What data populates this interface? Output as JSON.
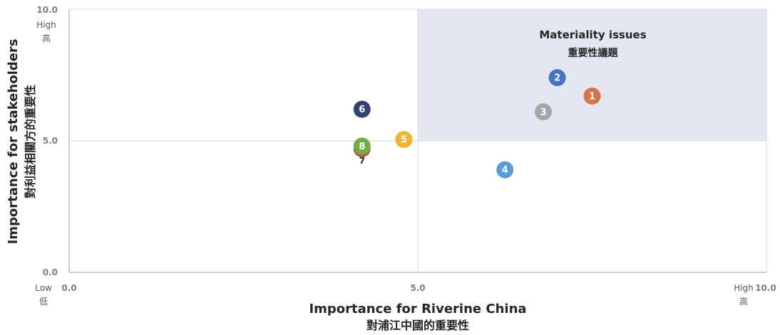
{
  "chart_data": {
    "type": "scatter",
    "title": "",
    "xlabel": "Importance for Riverine China",
    "xlabel_sub": "對浦江中國的重要性",
    "ylabel": "Importance for stakeholders",
    "ylabel_sub": "對利益相關方的重要性",
    "xlim": [
      0,
      10
    ],
    "ylim": [
      0,
      10
    ],
    "x_ticks": [
      "0.0",
      "5.0",
      "10.0"
    ],
    "y_ticks": [
      "0.0",
      "5.0",
      "10.0"
    ],
    "x_low_label": "Low",
    "x_low_sub": "低",
    "x_high_label": "High",
    "x_high_sub": "高",
    "y_high_label": "High",
    "y_high_sub": "高",
    "grid": false,
    "region": {
      "x_range": [
        5,
        10
      ],
      "y_range": [
        5,
        10
      ],
      "title": "Materiality issues",
      "subtitle": "重要性議題",
      "color": "#e4e6f2"
    },
    "points": [
      {
        "label": "1",
        "x": 7.5,
        "y": 6.7,
        "color": "#d9734a"
      },
      {
        "label": "2",
        "x": 7.0,
        "y": 7.4,
        "color": "#4673c4"
      },
      {
        "label": "3",
        "x": 6.8,
        "y": 6.1,
        "color": "#a6a6a6"
      },
      {
        "label": "4",
        "x": 6.25,
        "y": 3.9,
        "color": "#5b9bd5"
      },
      {
        "label": "5",
        "x": 4.8,
        "y": 5.05,
        "color": "#f2b233"
      },
      {
        "label": "6",
        "x": 4.2,
        "y": 6.2,
        "color": "#2f4470"
      },
      {
        "label": "7",
        "x": 4.2,
        "y": 4.7,
        "color": "#b35a3a",
        "label_outside": true
      },
      {
        "label": "8",
        "x": 4.2,
        "y": 4.8,
        "color": "#70ad47"
      }
    ]
  }
}
